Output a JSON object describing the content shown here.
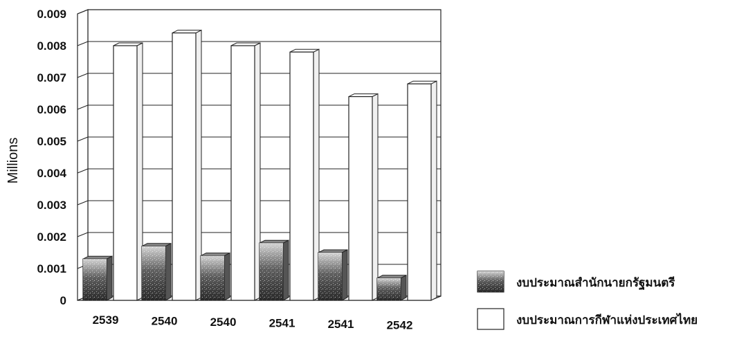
{
  "chart_data": {
    "type": "bar",
    "title": "",
    "xlabel": "",
    "ylabel": "Millions",
    "ylim": [
      0,
      0.009
    ],
    "yticks": [
      "0",
      "0.001",
      "0.002",
      "0.003",
      "0.004",
      "0.005",
      "0.006",
      "0.007",
      "0.008",
      "0.009"
    ],
    "categories": [
      "2539",
      "2540",
      "2540",
      "2541",
      "2541",
      "2542"
    ],
    "series": [
      {
        "name": "งบประมาณสำนักนายกรัฐมนตรี",
        "values": [
          0.0013,
          0.0017,
          0.0014,
          0.0018,
          0.0015,
          0.0007
        ],
        "color": "#222222"
      },
      {
        "name": "งบประมาณการกีฬาแห่งประเทศไทย",
        "values": [
          0.008,
          0.0084,
          0.008,
          0.0078,
          0.0064,
          0.0068
        ],
        "color": "#ffffff"
      }
    ],
    "grid": true,
    "legend": "bottom-right"
  }
}
